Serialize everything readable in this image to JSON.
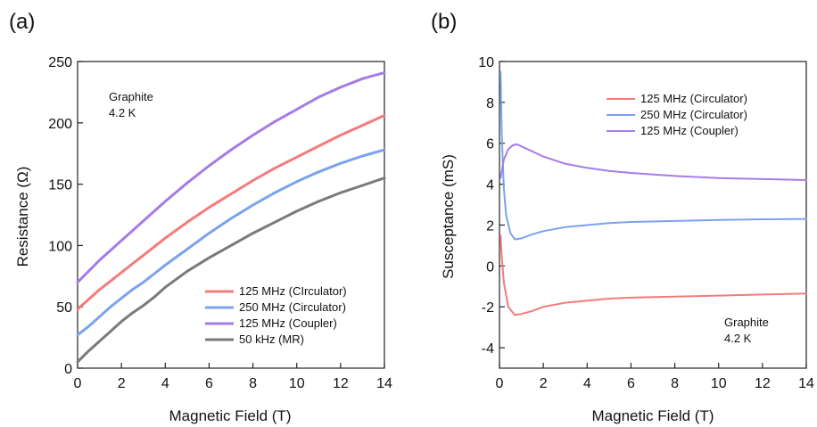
{
  "chart_data": [
    {
      "type": "line",
      "panel_label": "(a)",
      "xlabel": "Magnetic Field (T)",
      "ylabel": "Resistance (Ω)",
      "xlim": [
        0,
        14
      ],
      "ylim": [
        0,
        250
      ],
      "xticks": [
        "0",
        "2",
        "4",
        "6",
        "8",
        "10",
        "12",
        "14"
      ],
      "yticks": [
        "0",
        "50",
        "100",
        "150",
        "200",
        "250"
      ],
      "annotation": [
        "Graphite",
        "4.2 K"
      ],
      "legend_position": "bottom-right",
      "grid": false,
      "series": [
        {
          "name": "125 MHz (CIrculator)",
          "color": "#f37b7b",
          "x": [
            0,
            0.5,
            1,
            1.5,
            2,
            2.5,
            3,
            3.5,
            4,
            5,
            6,
            7,
            8,
            9,
            10,
            11,
            12,
            13,
            14
          ],
          "y": [
            48,
            56,
            64,
            71,
            78,
            85,
            92,
            99,
            106,
            119,
            131,
            142,
            153,
            163,
            172,
            181,
            190,
            198,
            206
          ]
        },
        {
          "name": "250 MHz (Circulator)",
          "color": "#7ba2ee",
          "x": [
            0,
            0.5,
            1,
            1.5,
            2,
            2.5,
            3,
            3.5,
            4,
            5,
            6,
            7,
            8,
            9,
            10,
            11,
            12,
            13,
            14
          ],
          "y": [
            27,
            34,
            42,
            50,
            57,
            64,
            70,
            77,
            84,
            97,
            110,
            122,
            133,
            143,
            152,
            160,
            167,
            173,
            178
          ]
        },
        {
          "name": "125 MHz (Coupler)",
          "color": "#a57ce6",
          "x": [
            0,
            0.5,
            1,
            1.5,
            2,
            2.5,
            3,
            3.5,
            4,
            5,
            6,
            7,
            8,
            9,
            10,
            11,
            12,
            13,
            14
          ],
          "y": [
            70,
            79,
            88,
            96,
            104,
            112,
            120,
            128,
            136,
            151,
            165,
            178,
            190,
            201,
            211,
            221,
            229,
            236,
            241
          ]
        },
        {
          "name": "50 kHz (MR)",
          "color": "#7a7a7a",
          "x": [
            0,
            0.5,
            1,
            1.5,
            2,
            2.5,
            3,
            3.5,
            4,
            5,
            6,
            7,
            8,
            9,
            10,
            11,
            12,
            13,
            14
          ],
          "y": [
            5,
            14,
            22,
            30,
            38,
            45,
            51,
            58,
            66,
            79,
            90,
            100,
            110,
            119,
            128,
            136,
            143,
            149,
            155
          ]
        }
      ]
    },
    {
      "type": "line",
      "panel_label": "(b)",
      "xlabel": "Magnetic Field (T)",
      "ylabel": "Susceptance (mS)",
      "xlim": [
        0,
        14
      ],
      "ylim": [
        -5,
        10
      ],
      "xticks": [
        "0",
        "2",
        "4",
        "6",
        "8",
        "10",
        "12",
        "14"
      ],
      "yticks": [
        "-4",
        "-2",
        "0",
        "2",
        "4",
        "6",
        "8",
        "10"
      ],
      "annotation": [
        "Graphite",
        "4.2 K"
      ],
      "legend_position": "top-right",
      "grid": false,
      "series": [
        {
          "name": "125 MHz (Circulator)",
          "color": "#f37b7b",
          "x": [
            0.05,
            0.1,
            0.2,
            0.4,
            0.7,
            1,
            1.5,
            2,
            3,
            4,
            5,
            6,
            8,
            10,
            12,
            14
          ],
          "y": [
            1.5,
            0.5,
            -0.8,
            -2.0,
            -2.4,
            -2.35,
            -2.2,
            -2.0,
            -1.8,
            -1.7,
            -1.6,
            -1.55,
            -1.5,
            -1.45,
            -1.4,
            -1.35
          ]
        },
        {
          "name": "250 MHz (Circulator)",
          "color": "#7ba2ee",
          "x": [
            0.05,
            0.1,
            0.2,
            0.3,
            0.5,
            0.7,
            1,
            1.5,
            2,
            3,
            4,
            5,
            6,
            8,
            10,
            12,
            14
          ],
          "y": [
            9.5,
            6.5,
            3.8,
            2.5,
            1.6,
            1.3,
            1.35,
            1.55,
            1.7,
            1.9,
            2.0,
            2.1,
            2.15,
            2.2,
            2.25,
            2.28,
            2.3
          ]
        },
        {
          "name": "125 MHz (Coupler)",
          "color": "#a57ce6",
          "x": [
            0.05,
            0.2,
            0.4,
            0.6,
            0.8,
            1,
            1.5,
            2,
            3,
            4,
            5,
            6,
            8,
            10,
            12,
            14
          ],
          "y": [
            4.3,
            5.2,
            5.7,
            5.9,
            5.95,
            5.85,
            5.6,
            5.35,
            5.0,
            4.8,
            4.65,
            4.55,
            4.4,
            4.3,
            4.25,
            4.2
          ]
        }
      ]
    }
  ]
}
